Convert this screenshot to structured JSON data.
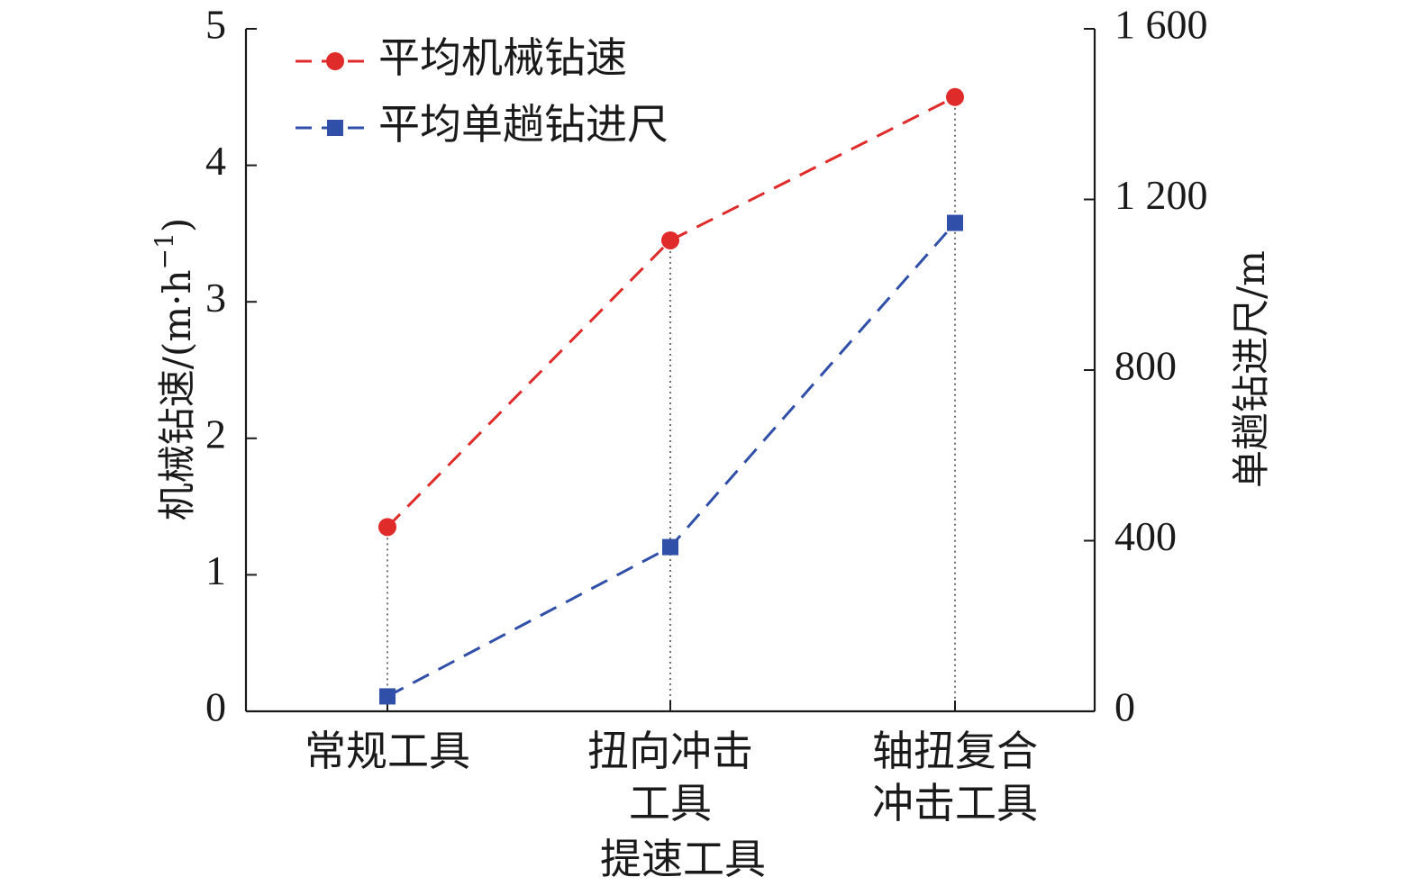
{
  "chart_data": {
    "type": "line",
    "categories": [
      [
        "常规工具"
      ],
      [
        "扭向冲击",
        "工具"
      ],
      [
        "轴扭复合",
        "冲击工具"
      ]
    ],
    "x_subtitle": "提速工具",
    "y_left": {
      "label": "机械钻速/(m·h",
      "label_sup": "−1",
      "label_close": ")",
      "lim": [
        0,
        5
      ],
      "ticks": [
        0,
        1,
        2,
        3,
        4,
        5
      ],
      "tick_labels": [
        "0",
        "1",
        "2",
        "3",
        "4",
        "5"
      ]
    },
    "y_right": {
      "label": "单趟钻进尺/m",
      "lim": [
        0,
        1600
      ],
      "ticks": [
        0,
        400,
        800,
        1200,
        1600
      ],
      "tick_labels": [
        "0",
        "400",
        "800",
        "1 200",
        "1 600"
      ]
    },
    "series": [
      {
        "name": "平均机械钻速",
        "axis": "left",
        "values": [
          1.35,
          3.45,
          4.5
        ],
        "color": "#e02b2b",
        "marker": "circle",
        "line_style": "dashed"
      },
      {
        "name": "平均单趟钻进尺",
        "axis": "right",
        "values": [
          35,
          385,
          1145
        ],
        "color": "#2f4fa8",
        "marker": "square",
        "line_style": "dashed"
      }
    ],
    "legend_position": "top-left",
    "drop_lines": "dotted vertical lines from the higher point to the x-axis",
    "grid": false
  }
}
